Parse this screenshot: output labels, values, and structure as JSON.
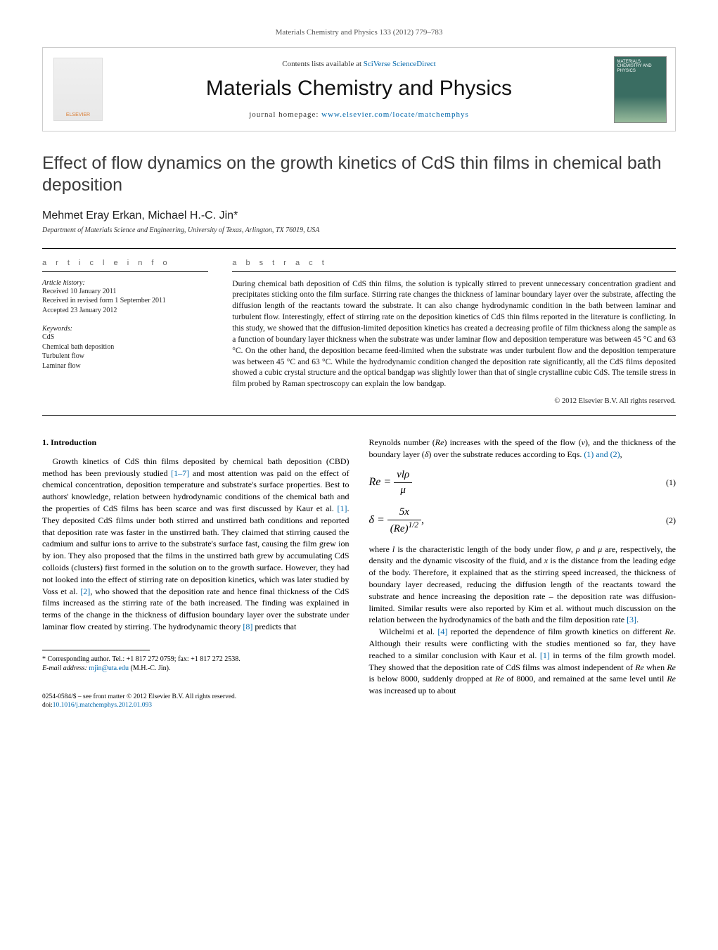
{
  "header": {
    "citation": "Materials Chemistry and Physics 133 (2012) 779–783"
  },
  "banner": {
    "elsevier_label": "ELSEVIER",
    "contents_prefix": "Contents lists available at ",
    "contents_link": "SciVerse ScienceDirect",
    "journal_name": "Materials Chemistry and Physics",
    "homepage_prefix": "journal homepage: ",
    "homepage_url": "www.elsevier.com/locate/matchemphys",
    "cover_text": "MATERIALS CHEMISTRY AND PHYSICS"
  },
  "article": {
    "title": "Effect of flow dynamics on the growth kinetics of CdS thin films in chemical bath deposition",
    "authors": "Mehmet Eray Erkan, Michael H.-C. Jin*",
    "affiliation": "Department of Materials Science and Engineering, University of Texas, Arlington, TX 76019, USA"
  },
  "info": {
    "head": "a r t i c l e   i n f o",
    "history_label": "Article history:",
    "received": "Received 10 January 2011",
    "revised": "Received in revised form 1 September 2011",
    "accepted": "Accepted 23 January 2012",
    "keywords_label": "Keywords:",
    "keywords": [
      "CdS",
      "Chemical bath deposition",
      "Turbulent flow",
      "Laminar flow"
    ]
  },
  "abstract": {
    "head": "a b s t r a c t",
    "text": "During chemical bath deposition of CdS thin films, the solution is typically stirred to prevent unnecessary concentration gradient and precipitates sticking onto the film surface. Stirring rate changes the thickness of laminar boundary layer over the substrate, affecting the diffusion length of the reactants toward the substrate. It can also change hydrodynamic condition in the bath between laminar and turbulent flow. Interestingly, effect of stirring rate on the deposition kinetics of CdS thin films reported in the literature is conflicting. In this study, we showed that the diffusion-limited deposition kinetics has created a decreasing profile of film thickness along the sample as a function of boundary layer thickness when the substrate was under laminar flow and deposition temperature was between 45 °C and 63 °C. On the other hand, the deposition became feed-limited when the substrate was under turbulent flow and the deposition temperature was between 45 °C and 63 °C. While the hydrodynamic condition changed the deposition rate significantly, all the CdS films deposited showed a cubic crystal structure and the optical bandgap was slightly lower than that of single crystalline cubic CdS. The tensile stress in film probed by Raman spectroscopy can explain the low bandgap.",
    "copyright": "© 2012 Elsevier B.V. All rights reserved."
  },
  "body": {
    "section_heading": "1. Introduction",
    "col1_para": "Growth kinetics of CdS thin films deposited by chemical bath deposition (CBD) method has been previously studied [1–7] and most attention was paid on the effect of chemical concentration, deposition temperature and substrate's surface properties. Best to authors' knowledge, relation between hydrodynamic conditions of the chemical bath and the properties of CdS films has been scarce and was first discussed by Kaur et al. [1]. They deposited CdS films under both stirred and unstirred bath conditions and reported that deposition rate was faster in the unstirred bath. They claimed that stirring caused the cadmium and sulfur ions to arrive to the substrate's surface fast, causing the film grew ion by ion. They also proposed that the films in the unstirred bath grew by accumulating CdS colloids (clusters) first formed in the solution on to the growth surface. However, they had not looked into the effect of stirring rate on deposition kinetics, which was later studied by Voss et al. [2], who showed that the deposition rate and hence final thickness of the CdS films increased as the stirring rate of the bath increased. The finding was explained in terms of the change in the thickness of diffusion boundary layer over the substrate under laminar flow created by stirring. The hydrodynamic theory [8] predicts that",
    "col2_intro": "Reynolds number (Re) increases with the speed of the flow (ν), and the thickness of the boundary layer (δ) over the substrate reduces according to Eqs. (1) and (2),",
    "eq1": {
      "lhs": "Re =",
      "num": "νlρ",
      "den": "μ",
      "number": "(1)"
    },
    "eq2": {
      "lhs": "δ =",
      "num": "5x",
      "den": "(Re)^{1/2}",
      "suffix": ",",
      "number": "(2)"
    },
    "col2_para1": "where l is the characteristic length of the body under flow, ρ and μ are, respectively, the density and the dynamic viscosity of the fluid, and x is the distance from the leading edge of the body. Therefore, it explained that as the stirring speed increased, the thickness of boundary layer decreased, reducing the diffusion length of the reactants toward the substrate and hence increasing the deposition rate – the deposition rate was diffusion-limited. Similar results were also reported by Kim et al. without much discussion on the relation between the hydrodynamics of the bath and the film deposition rate [3].",
    "col2_para2": "Wilchelmi et al. [4] reported the dependence of film growth kinetics on different Re. Although their results were conflicting with the studies mentioned so far, they have reached to a similar conclusion with Kaur et al. [1] in terms of the film growth model. They showed that the deposition rate of CdS films was almost independent of Re when Re is below 8000, suddenly dropped at Re of 8000, and remained at the same level until Re was increased up to about"
  },
  "footnote": {
    "corr": "* Corresponding author. Tel.: +1 817 272 0759; fax: +1 817 272 2538.",
    "email_label": "E-mail address: ",
    "email": "mjin@uta.edu",
    "email_suffix": " (M.H.-C. Jin)."
  },
  "footer": {
    "line1": "0254-0584/$ – see front matter © 2012 Elsevier B.V. All rights reserved.",
    "doi_prefix": "doi:",
    "doi": "10.1016/j.matchemphys.2012.01.093"
  },
  "refs": {
    "r1_7": "[1–7]",
    "r1": "[1]",
    "r2": "[2]",
    "r3": "[3]",
    "r4": "[4]",
    "r8": "[8]",
    "eqs": "(1) and (2)"
  }
}
